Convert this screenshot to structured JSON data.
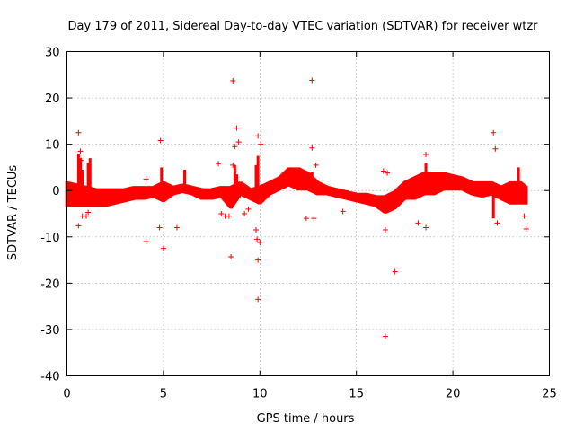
{
  "chart_data": {
    "type": "scatter",
    "title": "Day 179 of 2011, Sidereal Day-to-day VTEC variation (SDTVAR) for receiver wtzr",
    "xlabel": "GPS time / hours",
    "ylabel": "SDTVAR / TECUs",
    "xlim": [
      0,
      25
    ],
    "ylim": [
      -40,
      30
    ],
    "x_ticks": [
      0,
      5,
      10,
      15,
      20,
      25
    ],
    "x_tick_labels": [
      "0",
      "5",
      "10",
      "15",
      "20",
      "25"
    ],
    "y_ticks": [
      -40,
      -30,
      -20,
      -10,
      0,
      10,
      20,
      30
    ],
    "y_tick_labels": [
      "-40",
      "-30",
      "-20",
      "-10",
      "0",
      "10",
      "20",
      "30"
    ],
    "grid": true,
    "marker": "+",
    "color": "#ff0000",
    "series": [
      {
        "name": "SDTVAR",
        "band_profile": [
          [
            0.0,
            -3.5,
            2.0
          ],
          [
            0.5,
            -3.5,
            1.5
          ],
          [
            1.0,
            -3.5,
            1.0
          ],
          [
            1.5,
            -3.5,
            0.5
          ],
          [
            2.0,
            -3.5,
            0.5
          ],
          [
            2.5,
            -3.0,
            0.5
          ],
          [
            3.0,
            -2.5,
            0.5
          ],
          [
            3.5,
            -2.0,
            1.0
          ],
          [
            4.0,
            -2.0,
            1.0
          ],
          [
            4.5,
            -1.5,
            1.0
          ],
          [
            5.0,
            -2.5,
            2.0
          ],
          [
            5.5,
            -1.0,
            1.0
          ],
          [
            6.0,
            -0.5,
            1.5
          ],
          [
            6.5,
            -1.0,
            1.0
          ],
          [
            7.0,
            -2.0,
            0.5
          ],
          [
            7.5,
            -2.0,
            0.5
          ],
          [
            8.0,
            -1.5,
            1.0
          ],
          [
            8.5,
            -4.0,
            1.0
          ],
          [
            9.0,
            -1.0,
            2.0
          ],
          [
            9.5,
            -2.0,
            0.5
          ],
          [
            10.0,
            -3.0,
            1.0
          ],
          [
            10.5,
            -1.0,
            2.0
          ],
          [
            11.0,
            0.0,
            3.0
          ],
          [
            11.5,
            1.0,
            5.0
          ],
          [
            12.0,
            0.0,
            5.0
          ],
          [
            12.5,
            0.0,
            4.0
          ],
          [
            13.0,
            -1.0,
            2.0
          ],
          [
            13.5,
            -1.0,
            1.0
          ],
          [
            14.0,
            -1.5,
            0.5
          ],
          [
            14.5,
            -2.0,
            0.0
          ],
          [
            15.0,
            -2.5,
            -0.5
          ],
          [
            15.5,
            -3.0,
            -0.5
          ],
          [
            16.0,
            -3.5,
            -1.0
          ],
          [
            16.5,
            -5.0,
            -1.0
          ],
          [
            17.0,
            -4.0,
            0.0
          ],
          [
            17.5,
            -2.0,
            2.0
          ],
          [
            18.0,
            -2.0,
            3.0
          ],
          [
            18.5,
            -1.0,
            4.0
          ],
          [
            19.0,
            -1.0,
            4.0
          ],
          [
            19.5,
            0.0,
            4.0
          ],
          [
            20.0,
            0.0,
            3.5
          ],
          [
            20.5,
            0.0,
            3.0
          ],
          [
            21.0,
            -1.0,
            2.0
          ],
          [
            21.5,
            -1.5,
            2.0
          ],
          [
            22.0,
            -1.0,
            2.0
          ],
          [
            22.5,
            -2.0,
            1.0
          ],
          [
            23.0,
            -3.0,
            2.0
          ],
          [
            23.5,
            -3.0,
            2.0
          ],
          [
            23.8,
            -3.0,
            1.0
          ]
        ],
        "spikes": [
          [
            0.6,
            8.0
          ],
          [
            0.7,
            7.0
          ],
          [
            0.8,
            4.5
          ],
          [
            1.1,
            6.0
          ],
          [
            1.2,
            7.0
          ],
          [
            4.9,
            5.0
          ],
          [
            6.1,
            4.5
          ],
          [
            8.7,
            5.5
          ],
          [
            8.8,
            3.5
          ],
          [
            9.8,
            5.5
          ],
          [
            9.9,
            7.5
          ],
          [
            12.7,
            4.0
          ],
          [
            18.6,
            6.0
          ],
          [
            22.1,
            -6.0
          ],
          [
            23.4,
            5.0
          ]
        ],
        "outliers": [
          [
            0.6,
            12.5
          ],
          [
            0.7,
            8.5
          ],
          [
            0.75,
            6.5
          ],
          [
            0.6,
            -7.6
          ],
          [
            0.8,
            -5.5
          ],
          [
            1.0,
            -5.5
          ],
          [
            1.1,
            -4.7
          ],
          [
            4.1,
            -11.0
          ],
          [
            4.1,
            2.5
          ],
          [
            4.8,
            -8.0
          ],
          [
            4.85,
            10.8
          ],
          [
            5.0,
            -12.5
          ],
          [
            5.7,
            -8.0
          ],
          [
            7.85,
            5.8
          ],
          [
            8.0,
            -5.0
          ],
          [
            8.2,
            -5.5
          ],
          [
            8.4,
            -5.5
          ],
          [
            8.5,
            -14.3
          ],
          [
            8.6,
            23.7
          ],
          [
            8.7,
            9.5
          ],
          [
            8.8,
            13.5
          ],
          [
            8.9,
            10.5
          ],
          [
            8.6,
            5.5
          ],
          [
            9.2,
            -5.0
          ],
          [
            9.4,
            -4.0
          ],
          [
            9.8,
            -8.5
          ],
          [
            9.85,
            -10.5
          ],
          [
            9.9,
            -15.0
          ],
          [
            9.9,
            -23.5
          ],
          [
            9.9,
            11.8
          ],
          [
            10.05,
            10.0
          ],
          [
            10.0,
            -11.2
          ],
          [
            12.4,
            -6.0
          ],
          [
            12.7,
            9.2
          ],
          [
            12.7,
            23.8
          ],
          [
            12.8,
            -6.0
          ],
          [
            12.9,
            5.5
          ],
          [
            14.3,
            -4.5
          ],
          [
            16.4,
            4.2
          ],
          [
            16.6,
            3.8
          ],
          [
            16.5,
            -31.5
          ],
          [
            16.5,
            -8.5
          ],
          [
            17.0,
            -17.5
          ],
          [
            18.2,
            -7.0
          ],
          [
            18.6,
            7.8
          ],
          [
            18.6,
            -8.0
          ],
          [
            22.1,
            12.5
          ],
          [
            22.2,
            9.0
          ],
          [
            22.3,
            -7.0
          ],
          [
            23.8,
            -8.3
          ],
          [
            23.7,
            -5.5
          ]
        ]
      }
    ]
  }
}
